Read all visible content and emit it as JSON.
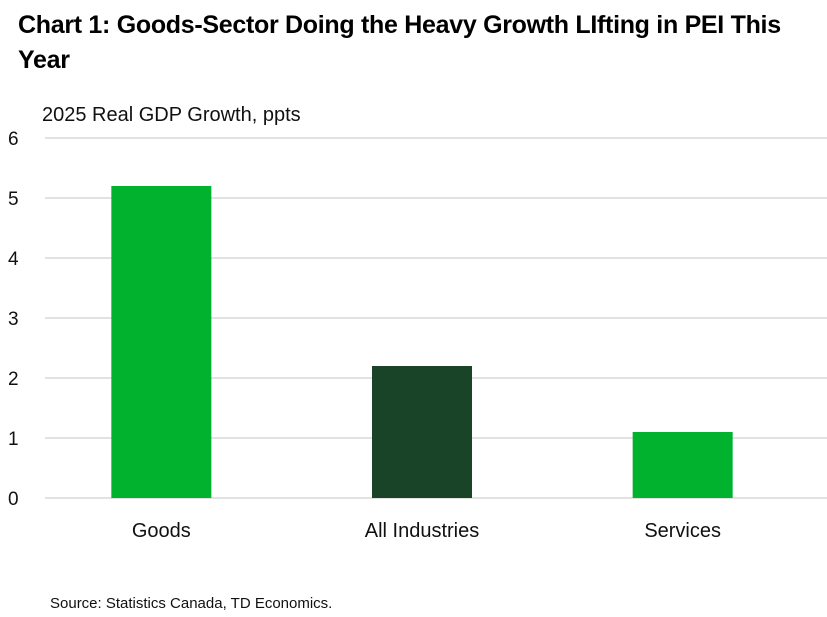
{
  "chart_data": {
    "type": "bar",
    "title": "Chart 1: Goods-Sector Doing the Heavy Growth LIfting in PEI This Year",
    "ylabel": "2025 Real GDP Growth, ppts",
    "xlabel": "",
    "categories": [
      "Goods",
      "All Industries",
      "Services"
    ],
    "values": [
      5.2,
      2.2,
      1.1
    ],
    "colors": [
      "#00b22d",
      "#1a4428",
      "#00b22d"
    ],
    "ylim": [
      0,
      6
    ],
    "yticks": [
      "0",
      "1",
      "2",
      "3",
      "4",
      "5",
      "6"
    ],
    "grid": true,
    "source": "Source: Statistics Canada, TD Economics."
  }
}
